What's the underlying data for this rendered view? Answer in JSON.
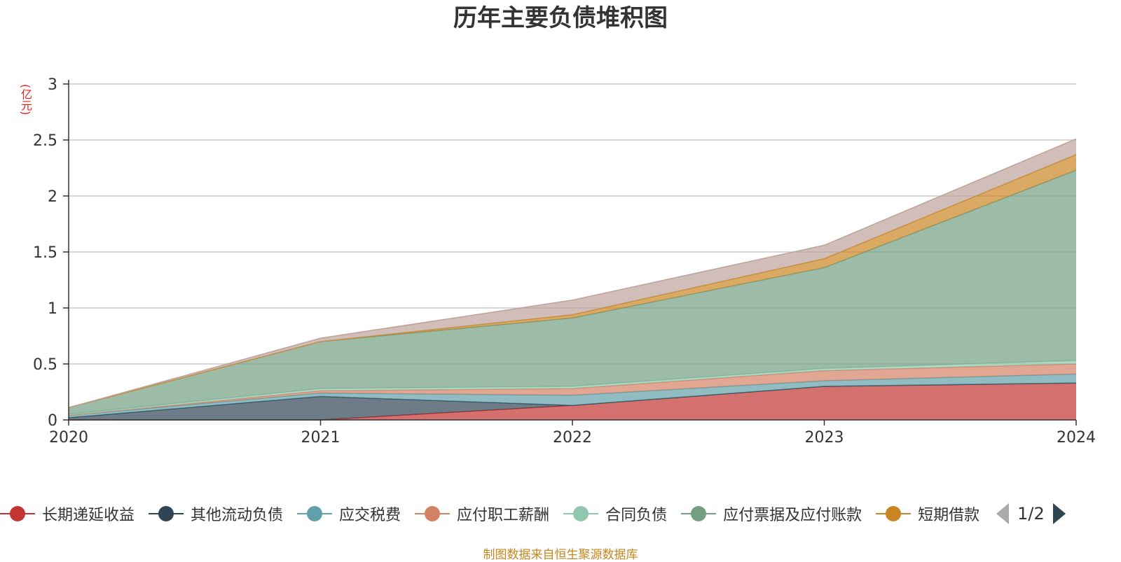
{
  "chart_data": {
    "type": "area",
    "stacked": true,
    "title": "历年主要负债堆积图",
    "ylabel": "(亿元)",
    "xlabel": "",
    "x": [
      "2020",
      "2021",
      "2022",
      "2023",
      "2024"
    ],
    "ylim": [
      0,
      3
    ],
    "yticks": [
      "0",
      "0.5",
      "1",
      "1.5",
      "2",
      "2.5",
      "3"
    ],
    "grid": true,
    "legend_position": "bottom",
    "series": [
      {
        "name": "长期递延收益",
        "color": "#c23531",
        "values": [
          0.0,
          0.0,
          0.13,
          0.3,
          0.33
        ]
      },
      {
        "name": "其他流动负债",
        "color": "#2f4554",
        "values": [
          0.02,
          0.21,
          0.0,
          0.0,
          0.0
        ]
      },
      {
        "name": "应交税费",
        "color": "#61a0a8",
        "values": [
          0.02,
          0.03,
          0.09,
          0.05,
          0.08
        ]
      },
      {
        "name": "应付职工薪酬",
        "color": "#d48265",
        "values": [
          0.0,
          0.02,
          0.06,
          0.09,
          0.09
        ]
      },
      {
        "name": "合同负债",
        "color": "#91c7ae",
        "values": [
          0.01,
          0.02,
          0.02,
          0.02,
          0.03
        ]
      },
      {
        "name": "应付票据及应付账款",
        "color": "#749f83",
        "values": [
          0.06,
          0.42,
          0.61,
          0.9,
          1.7
        ]
      },
      {
        "name": "短期借款",
        "color": "#ca8622",
        "values": [
          0.0,
          0.0,
          0.03,
          0.08,
          0.14
        ]
      },
      {
        "name": "",
        "color": "#bda29a",
        "values": [
          0.0,
          0.03,
          0.13,
          0.12,
          0.14
        ]
      }
    ]
  },
  "legend": {
    "page_label": "1/2",
    "prev_icon": "triangle-left-icon",
    "next_icon": "triangle-right-icon"
  },
  "source_note": "制图数据来自恒生聚源数据库"
}
